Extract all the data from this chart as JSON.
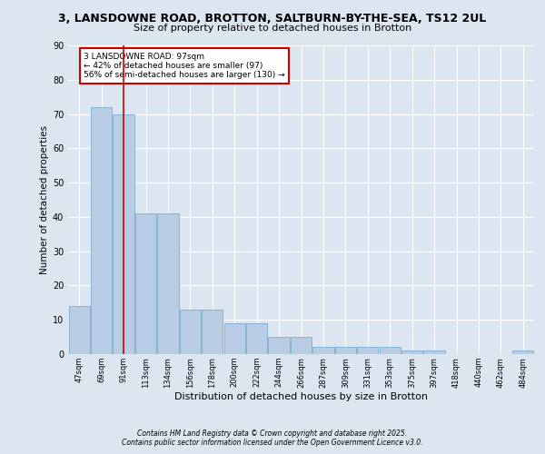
{
  "title1": "3, LANSDOWNE ROAD, BROTTON, SALTBURN-BY-THE-SEA, TS12 2UL",
  "title2": "Size of property relative to detached houses in Brotton",
  "xlabel": "Distribution of detached houses by size in Brotton",
  "ylabel": "Number of detached properties",
  "categories": [
    "47sqm",
    "69sqm",
    "91sqm",
    "113sqm",
    "134sqm",
    "156sqm",
    "178sqm",
    "200sqm",
    "222sqm",
    "244sqm",
    "266sqm",
    "287sqm",
    "309sqm",
    "331sqm",
    "353sqm",
    "375sqm",
    "397sqm",
    "418sqm",
    "440sqm",
    "462sqm",
    "484sqm"
  ],
  "bar_heights": [
    14,
    72,
    70,
    41,
    41,
    13,
    13,
    9,
    9,
    5,
    5,
    2,
    2,
    2,
    2,
    1,
    1,
    0,
    0,
    0,
    1
  ],
  "bar_color": "#b8cce4",
  "bar_edge_color": "#7bafd4",
  "bg_color": "#dce6f1",
  "grid_color": "#ffffff",
  "vline_x": 2,
  "vline_color": "#cc0000",
  "annotation_text": "3 LANSDOWNE ROAD: 97sqm\n← 42% of detached houses are smaller (97)\n56% of semi-detached houses are larger (130) →",
  "annotation_box_color": "#cc0000",
  "footer1": "Contains HM Land Registry data © Crown copyright and database right 2025.",
  "footer2": "Contains public sector information licensed under the Open Government Licence v3.0.",
  "ylim": [
    0,
    90
  ],
  "yticks": [
    0,
    10,
    20,
    30,
    40,
    50,
    60,
    70,
    80,
    90
  ]
}
